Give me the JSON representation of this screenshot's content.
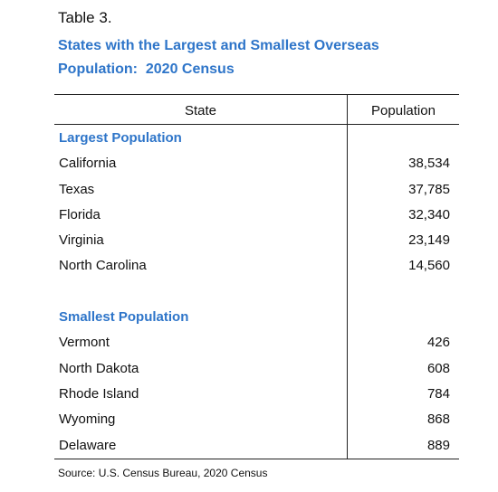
{
  "label": "Table 3.",
  "title_lines": [
    "States with the Largest and Smallest Overseas",
    "Population:  2020 Census"
  ],
  "table": {
    "columns": [
      "State",
      "Population"
    ],
    "sections": [
      {
        "heading": "Largest Population",
        "rows": [
          [
            "California",
            "38,534"
          ],
          [
            "Texas",
            "37,785"
          ],
          [
            "Florida",
            "32,340"
          ],
          [
            "Virginia",
            "23,149"
          ],
          [
            "North Carolina",
            "14,560"
          ]
        ]
      },
      {
        "heading": "Smallest Population",
        "rows": [
          [
            "Vermont",
            "426"
          ],
          [
            "North Dakota",
            "608"
          ],
          [
            "Rhode Island",
            "784"
          ],
          [
            "Wyoming",
            "868"
          ],
          [
            "Delaware",
            "889"
          ]
        ]
      }
    ]
  },
  "source": "Source: U.S. Census Bureau, 2020 Census"
}
